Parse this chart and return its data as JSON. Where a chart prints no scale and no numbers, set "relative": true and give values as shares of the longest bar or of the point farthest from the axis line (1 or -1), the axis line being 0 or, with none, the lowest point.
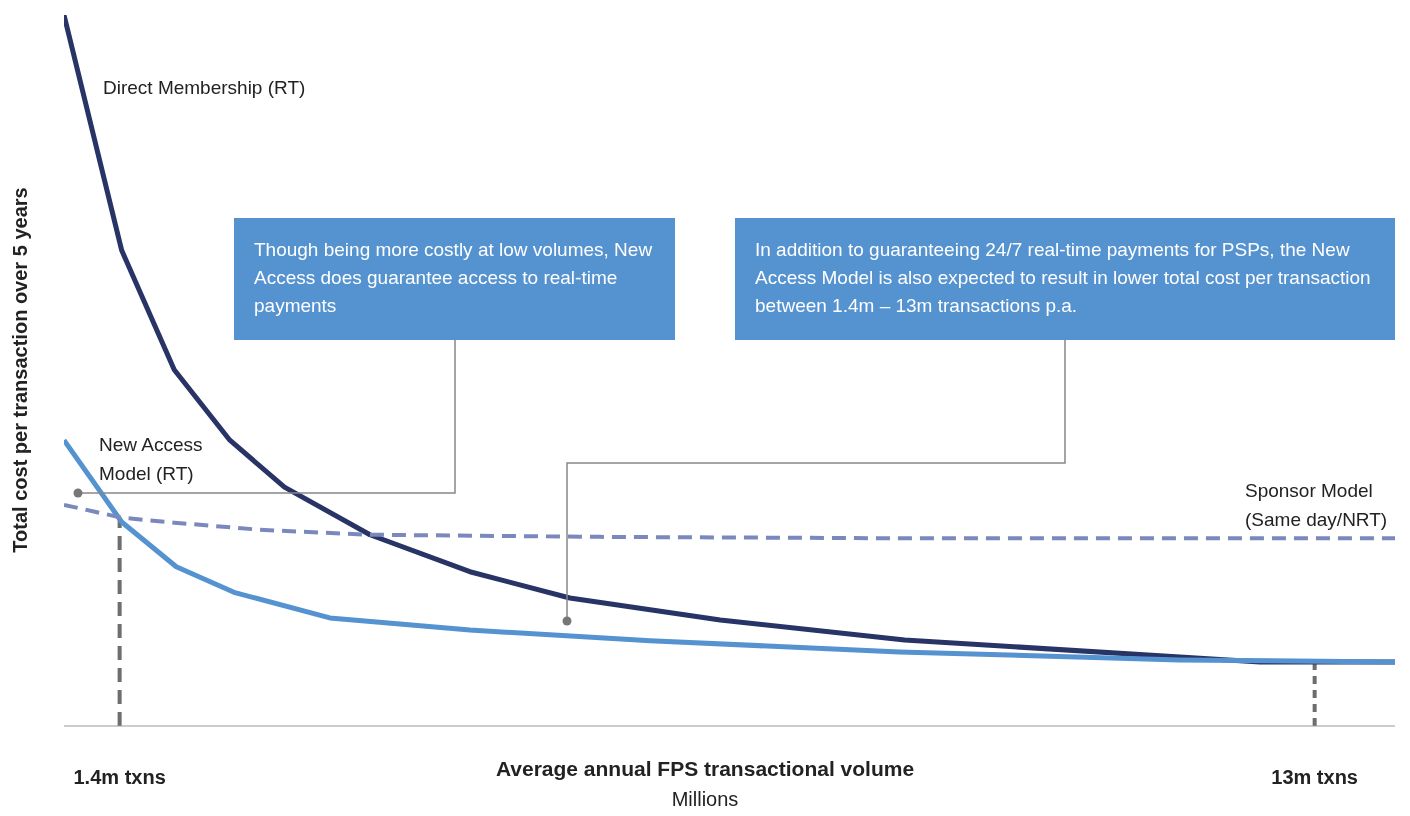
{
  "chart_data": {
    "type": "line",
    "relative": true,
    "ylabel": "Total cost per transaction over 5 years",
    "xlabel": "Average annual FPS transactional volume",
    "xlim": [
      0.86,
      13.78
    ],
    "xticks": [
      {
        "value": 1.4,
        "label": "1.4m txns"
      },
      {
        "value": 13,
        "label": "13m txns"
      }
    ],
    "series": [
      {
        "name": "Direct Membership (RT)",
        "color": "#283366",
        "x": [
          0.86,
          1.42,
          1.93,
          2.47,
          3.0,
          3.83,
          4.8,
          5.77,
          7.23,
          9.02,
          12.47,
          13.78
        ],
        "values": [
          1.0,
          0.669,
          0.501,
          0.402,
          0.336,
          0.269,
          0.217,
          0.18,
          0.149,
          0.121,
          0.09,
          0.09
        ]
      },
      {
        "name": "New Access Model (RT)",
        "color": "#5592d0",
        "x": [
          0.86,
          1.42,
          1.95,
          2.51,
          3.44,
          4.8,
          6.55,
          8.97,
          11.69,
          13.78
        ],
        "values": [
          0.402,
          0.287,
          0.224,
          0.188,
          0.152,
          0.135,
          0.12,
          0.104,
          0.093,
          0.09
        ]
      },
      {
        "name": "Sponsor Model (Same day/NRT)",
        "color": "#7a88bd",
        "line_style": "dashed",
        "x": [
          0.86,
          1.42,
          1.93,
          2.76,
          3.83,
          6.06,
          8.97,
          13.78
        ],
        "values": [
          0.311,
          0.293,
          0.286,
          0.276,
          0.269,
          0.266,
          0.264,
          0.264
        ]
      }
    ],
    "ref_lines": [
      {
        "axis": "x",
        "value": 1.4,
        "color": "#6d6d6d",
        "line_style": "dashed"
      },
      {
        "axis": "x",
        "value": 13,
        "color": "#6d6d6d",
        "line_style": "dotted"
      }
    ],
    "annotations": [
      "Though being more costly at low volumes, New Access does guarantee access to real-time payments",
      "In addition to guaranteeing 24/7 real-time payments for PSPs, the New Access Model is also expected to result in lower total cost per transaction between 1.4m – 13m transactions p.a.",
      "Millions"
    ]
  }
}
